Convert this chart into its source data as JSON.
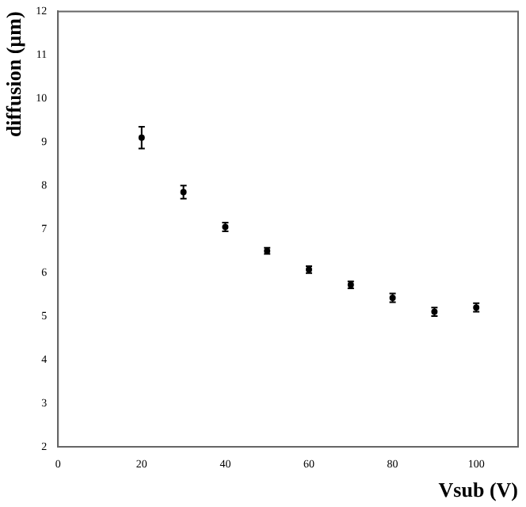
{
  "chart_data": {
    "type": "scatter",
    "xlabel": "Vsub (V)",
    "ylabel": "diffusion (µm)",
    "x": [
      20,
      30,
      40,
      50,
      60,
      70,
      80,
      90,
      100
    ],
    "values": [
      9.1,
      7.85,
      7.05,
      6.5,
      6.07,
      5.72,
      5.42,
      5.1,
      5.2
    ],
    "errors": [
      0.25,
      0.15,
      0.1,
      0.07,
      0.08,
      0.08,
      0.1,
      0.1,
      0.1
    ],
    "color": "#000000",
    "marker": "circle",
    "xlim": [
      0,
      110
    ],
    "xticks": [
      0,
      20,
      40,
      60,
      80,
      100
    ],
    "ylim": [
      2,
      12
    ],
    "yticks": [
      2,
      3,
      4,
      5,
      6,
      7,
      8,
      9,
      10,
      11,
      12
    ],
    "grid": false,
    "legend": false
  }
}
